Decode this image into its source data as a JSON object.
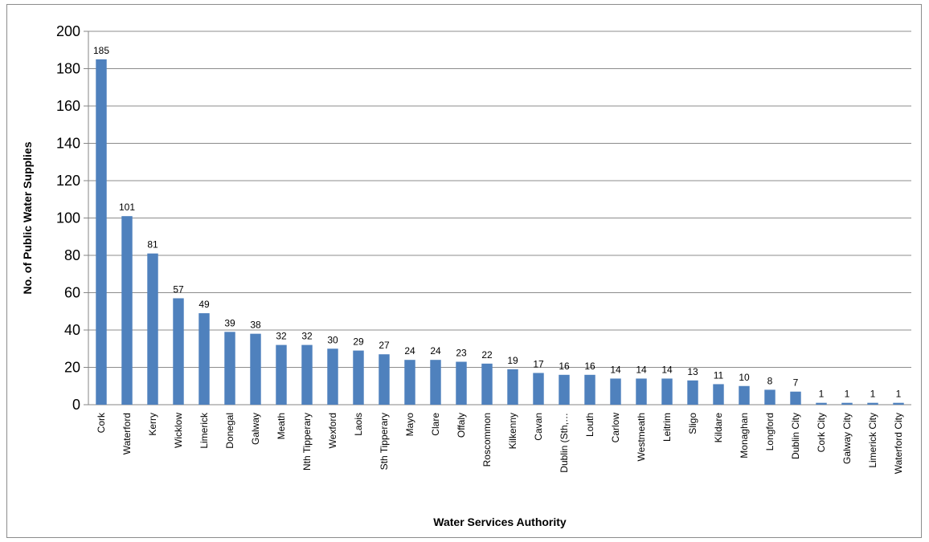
{
  "chart_data": {
    "type": "bar",
    "title": "",
    "xlabel": "Water Services Authority",
    "ylabel": "No. of Public Water Supplies",
    "ylim": [
      0,
      200
    ],
    "ytick_step": 20,
    "grid": true,
    "legend": "none",
    "bar_color": "#4f81bd",
    "categories": [
      "Cork",
      "Waterford",
      "Kerry",
      "Wicklow",
      "Limerick",
      "Donegal",
      "Galway",
      "Meath",
      "Nth Tipperary",
      "Wexford",
      "Laois",
      "Sth Tipperary",
      "Mayo",
      "Clare",
      "Offaly",
      "Roscommon",
      "Kilkenny",
      "Cavan",
      "Dublin (Sth,…",
      "Louth",
      "Carlow",
      "Westmeath",
      "Leitrim",
      "Sligo",
      "Kildare",
      "Monaghan",
      "Longford",
      "Dublin City",
      "Cork City",
      "Galway City",
      "Limerick City",
      "Waterford City"
    ],
    "values": [
      185,
      101,
      81,
      57,
      49,
      39,
      38,
      32,
      32,
      30,
      29,
      27,
      24,
      24,
      23,
      22,
      19,
      17,
      16,
      16,
      14,
      14,
      14,
      13,
      11,
      10,
      8,
      7,
      1,
      1,
      1,
      1
    ]
  }
}
